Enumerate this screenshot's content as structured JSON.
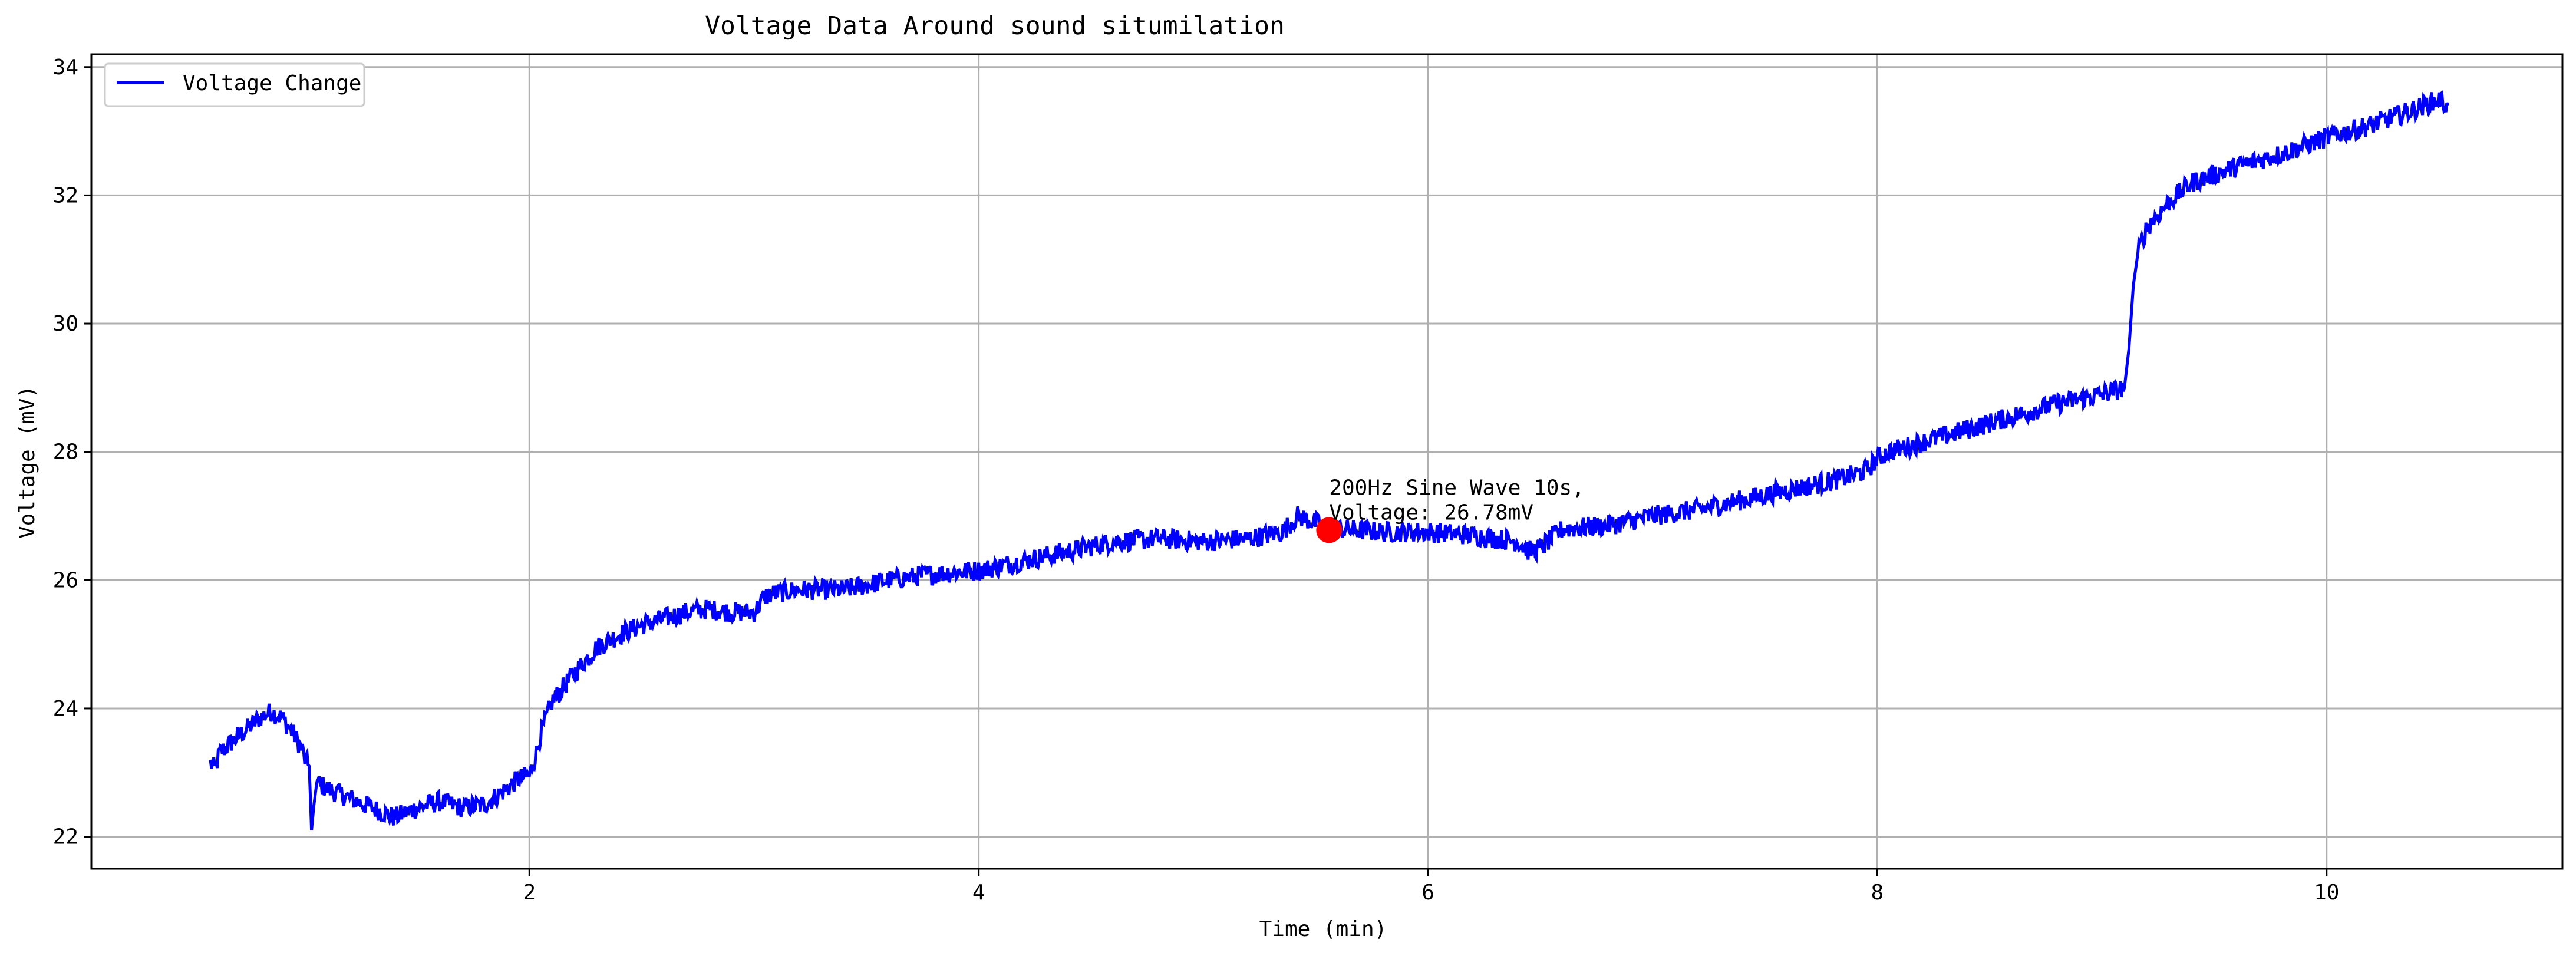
{
  "chart_data": {
    "type": "line",
    "title": "Voltage Data Around sound situmilation",
    "xlabel": "Time (min)",
    "ylabel": "Voltage (mV)",
    "xlim": [
      0.05,
      11.05
    ],
    "ylim": [
      21.5,
      34.2
    ],
    "xticks": [
      2,
      4,
      6,
      8,
      10
    ],
    "yticks": [
      22,
      24,
      26,
      28,
      30,
      32,
      34
    ],
    "grid": true,
    "legend_position": "top-left",
    "series": [
      {
        "name": "Voltage Change",
        "color": "#0000ff",
        "x": [
          0.58,
          0.6,
          0.62,
          0.65,
          0.7,
          0.75,
          0.8,
          0.85,
          0.9,
          0.95,
          0.99,
          1.0,
          1.02,
          1.03,
          1.05,
          1.1,
          1.2,
          1.3,
          1.4,
          1.5,
          1.6,
          1.7,
          1.8,
          1.9,
          1.95,
          2.0,
          2.03,
          2.05,
          2.1,
          2.2,
          2.3,
          2.4,
          2.5,
          2.6,
          2.7,
          2.8,
          2.9,
          3.0,
          3.05,
          3.1,
          3.2,
          3.4,
          3.6,
          3.8,
          4.0,
          4.2,
          4.4,
          4.6,
          4.8,
          5.0,
          5.2,
          5.35,
          5.42,
          5.5,
          5.56,
          5.6,
          5.8,
          6.0,
          6.2,
          6.4,
          6.45,
          6.5,
          6.6,
          6.8,
          7.0,
          7.2,
          7.4,
          7.6,
          7.8,
          7.95,
          8.0,
          8.05,
          8.2,
          8.4,
          8.6,
          8.8,
          9.0,
          9.1,
          9.12,
          9.14,
          9.16,
          9.2,
          9.3,
          9.4,
          9.6,
          9.8,
          10.0,
          10.2,
          10.4,
          10.5,
          10.54
        ],
        "y": [
          23.15,
          23.05,
          23.3,
          23.4,
          23.55,
          23.7,
          23.85,
          23.95,
          23.85,
          23.6,
          23.35,
          23.2,
          23.1,
          22.1,
          22.85,
          22.75,
          22.6,
          22.45,
          22.3,
          22.45,
          22.55,
          22.45,
          22.5,
          22.75,
          22.9,
          22.95,
          23.3,
          23.6,
          24.1,
          24.55,
          24.95,
          25.15,
          25.3,
          25.4,
          25.5,
          25.55,
          25.5,
          25.5,
          25.75,
          25.8,
          25.85,
          25.85,
          26.0,
          26.1,
          26.15,
          26.3,
          26.45,
          26.6,
          26.65,
          26.6,
          26.65,
          26.75,
          27.0,
          26.9,
          26.78,
          26.8,
          26.75,
          26.75,
          26.7,
          26.6,
          26.45,
          26.5,
          26.8,
          26.85,
          27.0,
          27.1,
          27.25,
          27.4,
          27.55,
          27.7,
          27.9,
          28.0,
          28.15,
          28.35,
          28.55,
          28.75,
          28.9,
          29.0,
          29.6,
          30.6,
          31.1,
          31.5,
          31.9,
          32.2,
          32.45,
          32.65,
          32.9,
          33.1,
          33.35,
          33.5,
          33.4
        ]
      }
    ],
    "annotation": {
      "x": 5.56,
      "y": 26.78,
      "color": "#ff0000",
      "line1": "200Hz Sine Wave 10s,",
      "line2": "Voltage: 26.78mV"
    }
  }
}
